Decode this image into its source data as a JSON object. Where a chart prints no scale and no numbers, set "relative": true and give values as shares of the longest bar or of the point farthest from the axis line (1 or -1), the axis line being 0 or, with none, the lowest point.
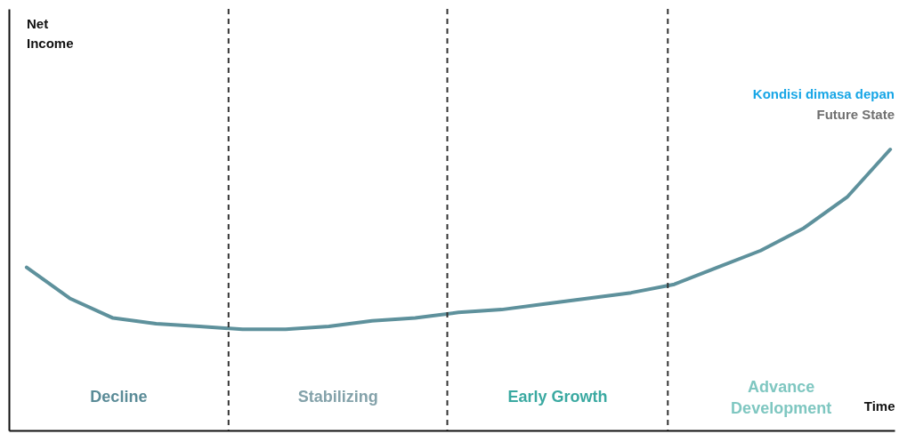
{
  "chart_data": {
    "type": "line",
    "title": "Kondisi dimasa depan",
    "subtitle": "Future State",
    "xlabel": "Time",
    "relative": true,
    "categories": [
      null,
      null,
      null,
      null,
      null,
      null,
      null,
      null,
      null,
      null,
      null,
      null,
      null,
      null,
      null,
      null,
      null,
      null,
      null,
      null,
      null
    ],
    "series": [
      {
        "color": "#5e919c",
        "values": [
          0.58,
          0.47,
          0.4,
          0.38,
          0.37,
          0.36,
          0.36,
          0.37,
          0.39,
          0.4,
          0.42,
          0.43,
          0.45,
          0.47,
          0.49,
          0.52,
          0.58,
          0.64,
          0.72,
          0.83,
          1
        ]
      }
    ],
    "annotations": [
      "Net Income",
      "Decline",
      "Stabilizing",
      "Early Growth",
      "Advance Development"
    ]
  }
}
